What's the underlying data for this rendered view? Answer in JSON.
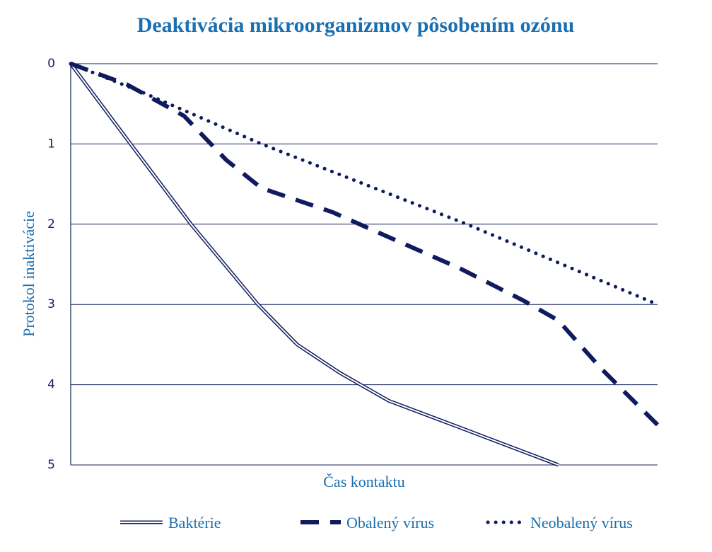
{
  "chart_data": {
    "type": "line",
    "title": "Deaktivácia mikroorganizmov pôsobením ozónu",
    "x_label": "Čas kontaktu",
    "y_label": "Protokol inaktivácie",
    "xlim": [
      0,
      100
    ],
    "ylim": [
      0,
      5
    ],
    "y_inverted": true,
    "yticks": [
      0,
      1,
      2,
      3,
      4,
      5
    ],
    "grid": true,
    "legend": "bottom",
    "series": [
      {
        "name": "Baktérie",
        "color": "#0f1b5e",
        "style": "double",
        "x": [
          0,
          10.2,
          20.5,
          31.9,
          38.6,
          45.8,
          54.2,
          65.1,
          83.1
        ],
        "values": [
          0,
          1,
          2,
          3,
          3.5,
          3.85,
          4.2,
          4.5,
          5
        ]
      },
      {
        "name": "Obalený vírus",
        "color": "#0f1b5e",
        "style": "dashed",
        "x": [
          0,
          9.6,
          19.3,
          26.5,
          32.5,
          44.6,
          55.4,
          66.3,
          77.1,
          83.1,
          90.4,
          100
        ],
        "values": [
          0,
          0.26,
          0.65,
          1.2,
          1.55,
          1.85,
          2.2,
          2.55,
          2.95,
          3.2,
          3.8,
          4.5
        ]
      },
      {
        "name": "Neobalený vírus",
        "color": "#0f1b5e",
        "style": "dotted",
        "x": [
          0,
          12.0,
          32.5,
          67.5,
          100
        ],
        "values": [
          0,
          0.35,
          1.0,
          2.0,
          3.0
        ]
      }
    ]
  }
}
